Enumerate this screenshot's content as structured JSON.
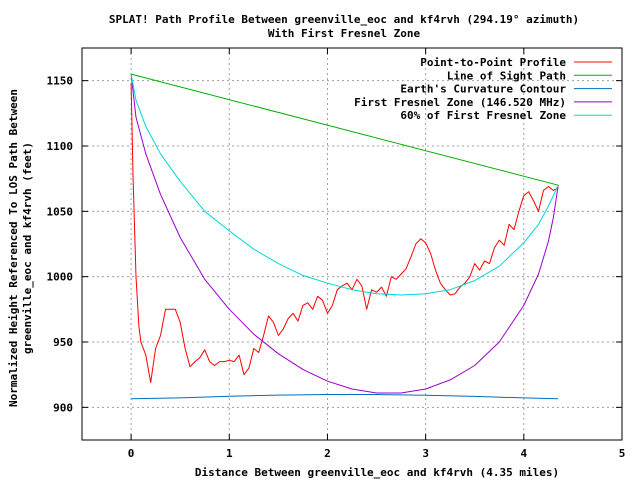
{
  "chart_data": {
    "type": "line",
    "title": "SPLAT! Path Profile Between greenville_eoc and kf4rvh (294.19° azimuth)",
    "subtitle": "With First Fresnel Zone",
    "xlabel": "Distance Between greenville_eoc and kf4rvh (4.35 miles)",
    "ylabel_line1": "Normalized Height Referenced To LOS Path Between",
    "ylabel_line2": "greenville_eoc and kf4rvh (feet)",
    "xlim": [
      -0.5,
      5
    ],
    "ylim": [
      875,
      1175
    ],
    "xticks": [
      "0",
      "1",
      "2",
      "3",
      "4",
      "5"
    ],
    "yticks": [
      "900",
      "950",
      "1000",
      "1050",
      "1100",
      "1150"
    ],
    "grid": true,
    "legend_position": "top-right",
    "series": [
      {
        "name": "Point-to-Point Profile",
        "color": "#ff0000",
        "x": [
          0.0,
          0.02,
          0.05,
          0.08,
          0.1,
          0.15,
          0.2,
          0.25,
          0.3,
          0.35,
          0.4,
          0.45,
          0.5,
          0.55,
          0.6,
          0.65,
          0.7,
          0.75,
          0.8,
          0.85,
          0.9,
          0.95,
          1.0,
          1.05,
          1.1,
          1.15,
          1.2,
          1.25,
          1.3,
          1.35,
          1.4,
          1.45,
          1.5,
          1.55,
          1.6,
          1.65,
          1.7,
          1.75,
          1.8,
          1.85,
          1.9,
          1.95,
          2.0,
          2.05,
          2.1,
          2.15,
          2.2,
          2.25,
          2.3,
          2.35,
          2.4,
          2.45,
          2.5,
          2.55,
          2.6,
          2.65,
          2.7,
          2.75,
          2.8,
          2.85,
          2.9,
          2.95,
          3.0,
          3.05,
          3.1,
          3.15,
          3.2,
          3.25,
          3.3,
          3.35,
          3.4,
          3.45,
          3.5,
          3.55,
          3.6,
          3.65,
          3.7,
          3.75,
          3.8,
          3.85,
          3.9,
          3.95,
          4.0,
          4.05,
          4.1,
          4.15,
          4.2,
          4.25,
          4.3,
          4.35
        ],
        "y": [
          1148,
          1075,
          1000,
          962,
          950,
          940,
          919,
          945,
          955,
          975,
          975,
          975,
          965,
          945,
          931,
          935,
          938,
          944,
          935,
          932,
          935,
          935,
          936,
          935,
          940,
          925,
          930,
          945,
          942,
          955,
          970,
          965,
          955,
          960,
          968,
          972,
          966,
          978,
          980,
          975,
          985,
          982,
          972,
          978,
          990,
          993,
          995,
          990,
          998,
          993,
          975,
          990,
          988,
          992,
          985,
          1000,
          998,
          1002,
          1006,
          1015,
          1025,
          1029,
          1026,
          1018,
          1005,
          995,
          990,
          986,
          987,
          992,
          995,
          1000,
          1010,
          1005,
          1012,
          1010,
          1022,
          1028,
          1024,
          1040,
          1036,
          1050,
          1062,
          1065,
          1058,
          1050,
          1066,
          1069,
          1066,
          1068
        ]
      },
      {
        "name": "Line of Sight Path",
        "color": "#00b000",
        "x": [
          0.0,
          4.35
        ],
        "y": [
          1155,
          1070
        ]
      },
      {
        "name": "Earth's Curvature Contour",
        "color": "#0070c0",
        "x": [
          0.0,
          0.5,
          1.0,
          1.5,
          2.0,
          2.5,
          3.0,
          3.5,
          4.0,
          4.35
        ],
        "y": [
          906.5,
          907.2,
          908.5,
          909.4,
          909.8,
          909.8,
          909.3,
          908.4,
          907.2,
          906.5
        ]
      },
      {
        "name": "First Fresnel Zone (146.520 MHz)",
        "color": "#9900cc",
        "x": [
          0.0,
          0.05,
          0.15,
          0.3,
          0.5,
          0.75,
          1.0,
          1.25,
          1.5,
          1.75,
          2.0,
          2.25,
          2.5,
          2.75,
          3.0,
          3.25,
          3.5,
          3.75,
          4.0,
          4.15,
          4.25,
          4.3,
          4.35
        ],
        "y": [
          1155,
          1122,
          1094,
          1063,
          1030,
          998,
          975,
          956,
          941,
          929,
          920,
          914,
          911,
          911,
          914,
          921,
          932,
          950,
          978,
          1002,
          1027,
          1045,
          1070
        ]
      },
      {
        "name": "60% of First Fresnel Zone",
        "color": "#00d8d8",
        "x": [
          0.0,
          0.05,
          0.15,
          0.3,
          0.5,
          0.75,
          1.0,
          1.25,
          1.5,
          1.75,
          2.0,
          2.25,
          2.5,
          2.75,
          3.0,
          3.25,
          3.5,
          3.75,
          4.0,
          4.15,
          4.25,
          4.3,
          4.35
        ],
        "y": [
          1155,
          1135,
          1115,
          1094,
          1073,
          1050,
          1035,
          1021,
          1010,
          1001,
          995,
          990,
          987,
          986,
          987,
          990,
          997,
          1008,
          1026,
          1040,
          1054,
          1062,
          1070
        ]
      }
    ]
  }
}
